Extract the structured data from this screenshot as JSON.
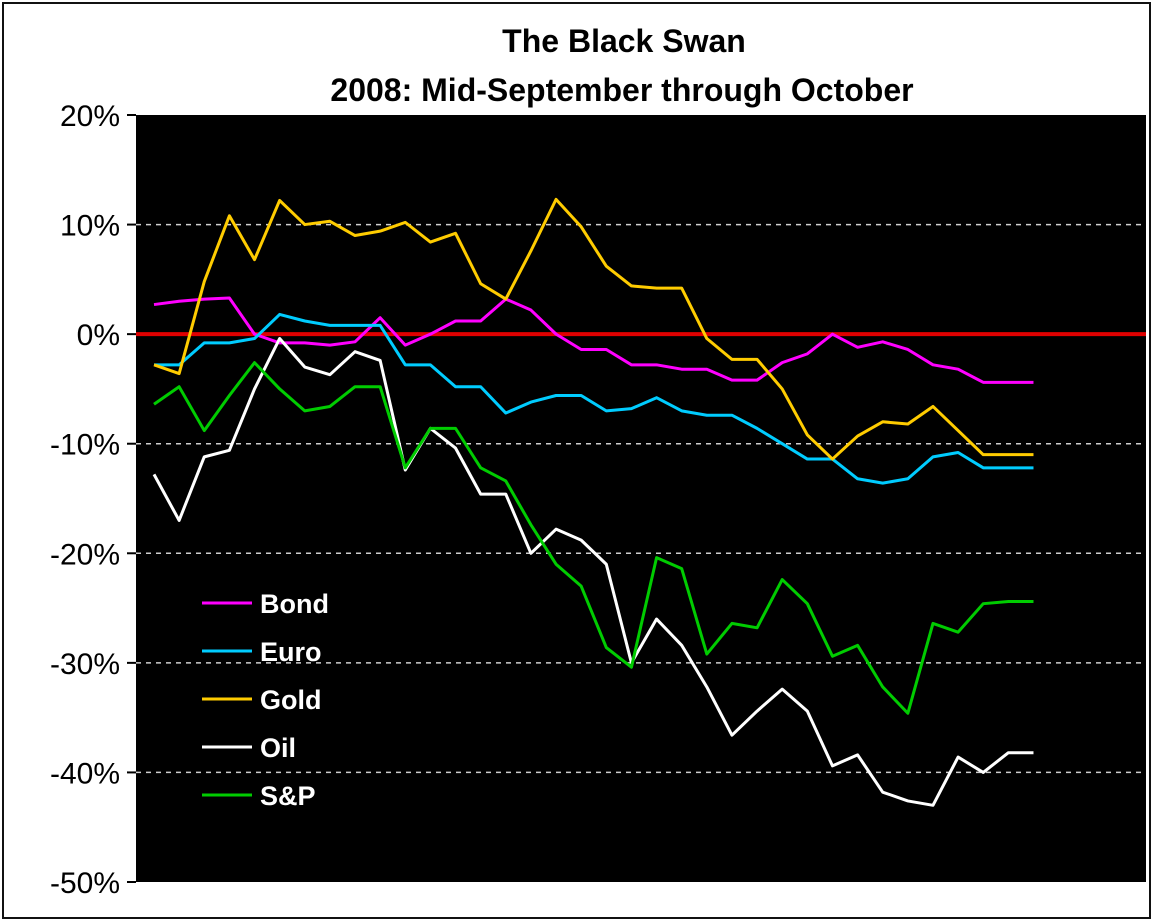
{
  "chart_data": {
    "type": "line",
    "title": "The Black Swan",
    "subtitle": "2008: Mid-September through October",
    "xlabel": "",
    "ylabel": "",
    "ylim": [
      -50,
      20
    ],
    "y_ticks": [
      20,
      10,
      0,
      -10,
      -20,
      -30,
      -40,
      -50
    ],
    "y_tick_labels": [
      "20%",
      "10%",
      "0%",
      "-10%",
      "-20%",
      "-30%",
      "-40%",
      "-50%"
    ],
    "y_unit": "%",
    "grid": "horizontal dashed",
    "zero_line_color": "#e00000",
    "background": "#000000",
    "legend_position": "lower-left",
    "x": [
      1,
      2,
      3,
      4,
      5,
      6,
      7,
      8,
      9,
      10,
      11,
      12,
      13,
      14,
      15,
      16,
      17,
      18,
      19,
      20,
      21,
      22,
      23,
      24,
      25,
      26,
      27,
      28,
      29,
      30,
      31,
      32,
      33,
      34,
      35,
      36,
      37,
      38,
      39,
      40
    ],
    "series": [
      {
        "name": "Bond",
        "color": "#ff00ff",
        "values": [
          2.7,
          3,
          3.2,
          3.3,
          0,
          -0.8,
          -0.8,
          -1,
          -0.7,
          1.5,
          -1,
          0,
          1.2,
          1.2,
          3.2,
          2.2,
          0,
          -1.4,
          -1.4,
          -2.8,
          -2.8,
          -3.2,
          -3.2,
          -4.2,
          -4.2,
          -2.6,
          -1.8,
          0,
          -1.2,
          -0.7,
          -1.4,
          -2.8,
          -3.2,
          -4.4,
          -4.4,
          -4.4,
          -4.4,
          -4.4,
          -4.4,
          -4.4
        ]
      },
      {
        "name": "Euro",
        "color": "#00ccff",
        "values": [
          -2.8,
          -2.8,
          -0.8,
          -0.8,
          -0.4,
          1.8,
          1.2,
          0.8,
          0.8,
          0.8,
          -2.8,
          -2.8,
          -4.8,
          -4.8,
          -7.2,
          -6.2,
          -5.6,
          -5.6,
          -7,
          -6.8,
          -5.8,
          -7,
          -7.4,
          -7.4,
          -8.6,
          -10,
          -11.4,
          -11.4,
          -13.2,
          -13.6,
          -13.2,
          -11.2,
          -10.8,
          -12.2,
          -12.2,
          -12.2,
          -12.2,
          -12.2,
          -12.2,
          -12.2
        ]
      },
      {
        "name": "Gold",
        "color": "#ffcc00",
        "values": [
          -2.8,
          -3.6,
          4.8,
          10.8,
          6.8,
          12.2,
          10,
          10.3,
          9,
          9.4,
          10.2,
          8.4,
          9.2,
          4.6,
          3.2,
          7.6,
          12.3,
          9.8,
          6.2,
          4.4,
          4.2,
          4.2,
          -0.4,
          -2.3,
          -2.3,
          -5,
          -9.2,
          -11.4,
          -9.3,
          -8,
          -8.2,
          -6.6,
          -8.8,
          -11,
          -11,
          -11,
          -11,
          -11,
          -11,
          -11
        ]
      },
      {
        "name": "Oil",
        "color": "#ffffff",
        "values": [
          -12.8,
          -17,
          -11.2,
          -10.6,
          -5,
          -0.4,
          -3,
          -3.7,
          -1.6,
          -2.4,
          -12.4,
          -8.6,
          -10.4,
          -14.6,
          -14.6,
          -20,
          -17.8,
          -18.8,
          -21,
          -30,
          -26,
          -28.4,
          -32.2,
          -36.6,
          -34.4,
          -32.4,
          -34.4,
          -39.4,
          -38.4,
          -41.8,
          -42.6,
          -43,
          -38.6,
          -40,
          -38.2,
          -38.2,
          -38.2,
          -38.2,
          -38.2,
          -38.2
        ]
      },
      {
        "name": "S&P",
        "color": "#00cc00",
        "values": [
          -6.4,
          -4.8,
          -8.8,
          -5.6,
          -2.6,
          -5,
          -7,
          -6.6,
          -4.8,
          -4.8,
          -12.2,
          -8.6,
          -8.6,
          -12.2,
          -13.4,
          -17.4,
          -21,
          -23,
          -28.6,
          -30.4,
          -20.4,
          -21.4,
          -29.2,
          -26.4,
          -26.8,
          -22.4,
          -24.6,
          -29.4,
          -28.4,
          -32.2,
          -34.6,
          -26.4,
          -27.2,
          -24.6,
          -24.4,
          -24.4,
          -24.4,
          -24.4,
          -24.4,
          -24.4
        ]
      }
    ]
  }
}
